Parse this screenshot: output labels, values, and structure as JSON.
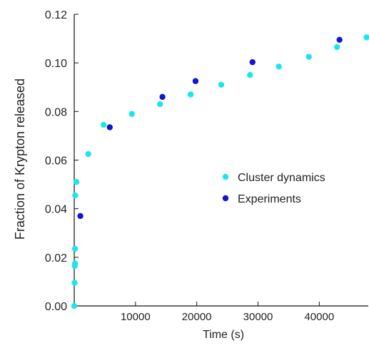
{
  "chart_data": {
    "type": "scatter",
    "title": "",
    "xlabel": "Time (s)",
    "ylabel": "Fraction of Krypton released",
    "xlim": [
      0,
      48000
    ],
    "ylim": [
      0,
      0.12
    ],
    "x_ticks": [
      10000,
      20000,
      30000,
      40000
    ],
    "x_tick_labels": [
      "10000",
      "20000",
      "30000",
      "40000"
    ],
    "y_ticks": [
      0,
      0.02,
      0.04,
      0.06,
      0.08,
      0.1,
      0.12
    ],
    "y_tick_labels": [
      "0.00",
      "0.02",
      "0.04",
      "0.06",
      "0.08",
      "0.10",
      "0.12"
    ],
    "grid": false,
    "legend_position": "center-right",
    "series": [
      {
        "name": "Cluster dynamics",
        "color": "#1ee4ee",
        "x": [
          0,
          60,
          80,
          130,
          130,
          160,
          350,
          2300,
          4800,
          9400,
          14000,
          19000,
          24000,
          28700,
          33400,
          38300,
          42900,
          47700
        ],
        "y": [
          0.0,
          0.0095,
          0.0165,
          0.0175,
          0.0235,
          0.0455,
          0.051,
          0.0625,
          0.0745,
          0.079,
          0.083,
          0.087,
          0.091,
          0.095,
          0.0985,
          0.1025,
          0.1065,
          0.1105
        ]
      },
      {
        "name": "Experiments",
        "color": "#1016d2",
        "x": [
          1000,
          5800,
          14400,
          19800,
          29100,
          43300
        ],
        "y": [
          0.037,
          0.0735,
          0.086,
          0.0925,
          0.1003,
          0.1095
        ]
      }
    ]
  }
}
